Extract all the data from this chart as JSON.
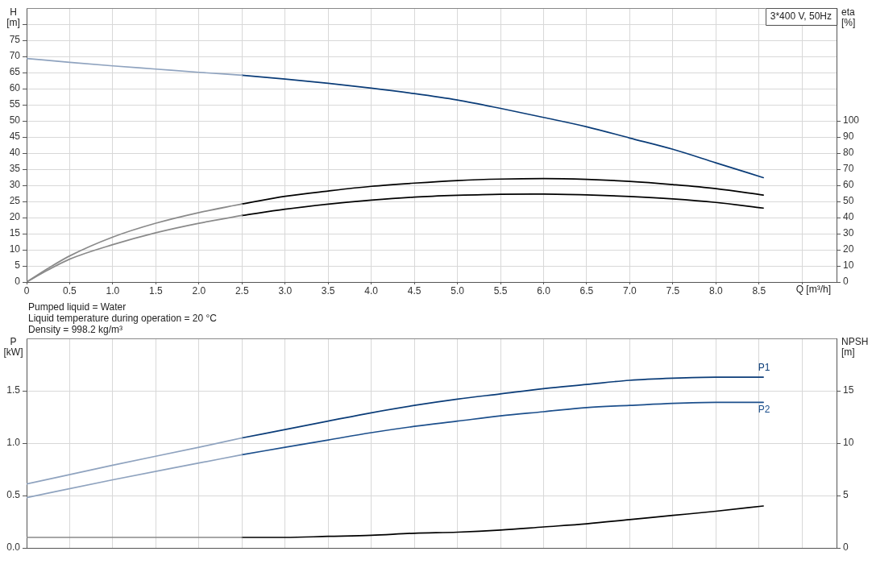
{
  "chart_data": [
    {
      "type": "line",
      "xlabel": "Q [m³/h]",
      "ylabel": "H [m]",
      "y2label": "eta [%]",
      "annotations": [
        "3*400 V, 50Hz"
      ],
      "series": [
        {
          "color": "#8fa3bf",
          "x": [
            0,
            0.5,
            1,
            1.5,
            2,
            2.5
          ],
          "values": [
            69.4,
            68.2,
            67.1,
            66.1,
            65.1,
            64.2
          ]
        },
        {
          "color": "#0a3c78",
          "x": [
            2.5,
            3,
            3.5,
            4,
            4.5,
            5,
            5.5,
            6,
            6.5,
            7,
            7.5,
            8,
            8.55
          ],
          "values": [
            64.2,
            63.0,
            61.7,
            60.2,
            58.5,
            56.5,
            53.9,
            51.1,
            48.2,
            44.7,
            41.2,
            37.0,
            32.4
          ]
        },
        {
          "color": "#8a8a8a",
          "axis": "y2",
          "x": [
            0,
            0.25,
            0.5,
            1,
            1.5,
            2,
            2.5
          ],
          "values": [
            0,
            8.5,
            16.2,
            27.9,
            36.5,
            43.1,
            48.5
          ]
        },
        {
          "color": "#000000",
          "axis": "y2",
          "x": [
            2.5,
            3,
            3.5,
            4,
            4.5,
            5,
            5.5,
            6,
            6.5,
            7,
            7.5,
            8,
            8.55
          ],
          "values": [
            48.5,
            53.2,
            56.5,
            59.4,
            61.4,
            63.0,
            63.9,
            64.2,
            63.7,
            62.5,
            60.5,
            58.0,
            54.0
          ]
        },
        {
          "color": "#8a8a8a",
          "axis": "y2",
          "x": [
            0,
            0.25,
            0.5,
            1,
            1.5,
            2,
            2.5
          ],
          "values": [
            0,
            7.5,
            14.2,
            23.2,
            30.6,
            36.5,
            41.3
          ]
        },
        {
          "color": "#000000",
          "axis": "y2",
          "x": [
            2.5,
            3,
            3.5,
            4,
            4.5,
            5,
            5.5,
            6,
            6.5,
            7,
            7.5,
            8,
            8.55
          ],
          "values": [
            41.3,
            45.2,
            48.3,
            50.8,
            52.7,
            53.8,
            54.5,
            54.6,
            54.1,
            53.1,
            51.6,
            49.4,
            45.9
          ]
        }
      ],
      "xlim": [
        0,
        9.4
      ],
      "xticks": [
        0,
        0.5,
        {
          "value": 1,
          "label": "1.0"
        },
        1.5,
        {
          "value": 2,
          "label": "2.0"
        },
        2.5,
        {
          "value": 3,
          "label": "3.0"
        },
        3.5,
        {
          "value": 4,
          "label": "4.0"
        },
        4.5,
        {
          "value": 5,
          "label": "5.0"
        },
        5.5,
        {
          "value": 6,
          "label": "6.0"
        },
        6.5,
        {
          "value": 7,
          "label": "7.0"
        },
        7.5,
        {
          "value": 8,
          "label": "8.0"
        },
        8.5,
        {
          "value": 9,
          "label": null
        }
      ],
      "ylim": [
        0,
        85
      ],
      "yticks": [
        0,
        5,
        10,
        15,
        20,
        25,
        30,
        35,
        40,
        45,
        50,
        55,
        60,
        65,
        70,
        75,
        {
          "value": 80,
          "label": null
        }
      ],
      "y2lim": [
        0,
        170
      ],
      "y2ticks": [
        0,
        10,
        20,
        30,
        40,
        50,
        60,
        70,
        80,
        90,
        100
      ],
      "grid": true,
      "legend": false,
      "marker": "none",
      "line_style": "solid"
    },
    {
      "type": "line",
      "ylabel": "P [kW]",
      "y2label": "NPSH [m]",
      "annotations": [
        "Pumped liquid = Water",
        "Liquid temperature during operation = 20 °C",
        "Density = 998.2 kg/m³"
      ],
      "series": [
        {
          "color": "#8fa3bf",
          "x": [
            0,
            1,
            2,
            2.5
          ],
          "values": [
            0.61,
            0.79,
            0.96,
            1.05
          ]
        },
        {
          "name": "P1",
          "color": "#0a3c78",
          "x": [
            2.5,
            3,
            3.5,
            4,
            4.5,
            5,
            5.5,
            6,
            6.5,
            7,
            7.5,
            8,
            8.55
          ],
          "values": [
            1.05,
            1.13,
            1.21,
            1.29,
            1.36,
            1.42,
            1.47,
            1.52,
            1.56,
            1.6,
            1.62,
            1.63,
            1.63
          ]
        },
        {
          "color": "#8fa3bf",
          "x": [
            0,
            1,
            2,
            2.5
          ],
          "values": [
            0.48,
            0.65,
            0.81,
            0.89
          ]
        },
        {
          "name": "P2",
          "color": "#1c4f8c",
          "x": [
            2.5,
            3,
            3.5,
            4,
            4.5,
            5,
            5.5,
            6,
            6.5,
            7,
            7.5,
            8,
            8.55
          ],
          "values": [
            0.89,
            0.96,
            1.03,
            1.1,
            1.16,
            1.21,
            1.26,
            1.3,
            1.34,
            1.36,
            1.38,
            1.39,
            1.39
          ]
        },
        {
          "color": "#8a8a8a",
          "axis": "y2",
          "x": [
            0,
            1,
            2,
            2.5
          ],
          "values": [
            1.0,
            1.0,
            1.0,
            1.0
          ]
        },
        {
          "color": "#000000",
          "axis": "y2",
          "x": [
            2.5,
            3,
            3.5,
            4,
            4.5,
            5,
            5.5,
            6,
            6.5,
            7,
            7.5,
            8,
            8.55
          ],
          "values": [
            1.0,
            1.0,
            1.1,
            1.2,
            1.4,
            1.5,
            1.7,
            2.0,
            2.3,
            2.7,
            3.1,
            3.5,
            4.0
          ]
        }
      ],
      "xlim": [
        0,
        9.4
      ],
      "xticks": [
        0,
        0.5,
        1,
        1.5,
        2,
        2.5,
        3,
        3.5,
        4,
        4.5,
        5,
        5.5,
        6,
        6.5,
        7,
        7.5,
        8,
        8.5,
        9
      ],
      "ylim": [
        0,
        2
      ],
      "yticks": [
        {
          "value": 0,
          "label": "0.0"
        },
        0.5,
        {
          "value": 1,
          "label": "1.0"
        },
        1.5
      ],
      "y2lim": [
        0,
        20
      ],
      "y2ticks": [
        0,
        5,
        10,
        15
      ],
      "tick_labels": "y",
      "grid": true,
      "legend": false,
      "marker": "none",
      "line_style": "solid"
    }
  ]
}
